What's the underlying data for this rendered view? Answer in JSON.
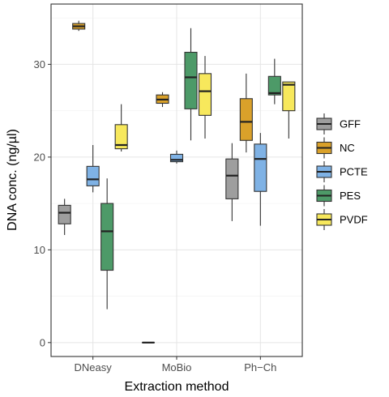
{
  "chart_data": {
    "type": "boxplot",
    "xlabel": "Extraction method",
    "ylabel": "DNA conc. (ng/µl)",
    "categories": [
      "DNeasy",
      "MoBio",
      "Ph−Ch"
    ],
    "yticks": [
      0,
      10,
      20,
      30
    ],
    "ylim": [
      -1.5,
      36.5
    ],
    "grid": true,
    "legend_position": "right",
    "series": [
      {
        "name": "GFF",
        "color": "#9e9e9e",
        "boxes": [
          {
            "category": "DNeasy",
            "min": 11.6,
            "q1": 12.8,
            "median": 14.0,
            "q3": 14.8,
            "max": 15.5
          },
          {
            "category": "MoBio",
            "min": 0.0,
            "q1": 0.0,
            "median": 0.0,
            "q3": 0.0,
            "max": 0.0
          },
          {
            "category": "Ph−Ch",
            "min": 13.1,
            "q1": 15.5,
            "median": 18.0,
            "q3": 19.8,
            "max": 21.5
          }
        ]
      },
      {
        "name": "NC",
        "color": "#daa12a",
        "boxes": [
          {
            "category": "DNeasy",
            "min": 33.6,
            "q1": 33.8,
            "median": 34.1,
            "q3": 34.4,
            "max": 34.7
          },
          {
            "category": "MoBio",
            "min": 25.4,
            "q1": 25.8,
            "median": 26.2,
            "q3": 26.7,
            "max": 27.0
          },
          {
            "category": "Ph−Ch",
            "min": 20.5,
            "q1": 21.8,
            "median": 23.8,
            "q3": 26.3,
            "max": 29.0
          }
        ]
      },
      {
        "name": "PCTE",
        "color": "#7fb2e5",
        "boxes": [
          {
            "category": "DNeasy",
            "min": 16.2,
            "q1": 16.9,
            "median": 17.6,
            "q3": 19.0,
            "max": 21.3
          },
          {
            "category": "MoBio",
            "min": 19.3,
            "q1": 19.5,
            "median": 19.7,
            "q3": 20.3,
            "max": 20.7
          },
          {
            "category": "Ph−Ch",
            "min": 12.6,
            "q1": 16.3,
            "median": 19.8,
            "q3": 21.4,
            "max": 22.6
          }
        ]
      },
      {
        "name": "PES",
        "color": "#4d9a68",
        "boxes": [
          {
            "category": "DNeasy",
            "min": 3.6,
            "q1": 7.8,
            "median": 12.0,
            "q3": 15.0,
            "max": 17.7
          },
          {
            "category": "MoBio",
            "min": 21.8,
            "q1": 25.2,
            "median": 28.6,
            "q3": 31.3,
            "max": 33.9
          },
          {
            "category": "Ph−Ch",
            "min": 25.7,
            "q1": 26.7,
            "median": 26.9,
            "q3": 28.7,
            "max": 30.6
          }
        ]
      },
      {
        "name": "PVDF",
        "color": "#f7e85c",
        "boxes": [
          {
            "category": "DNeasy",
            "min": 20.6,
            "q1": 20.9,
            "median": 21.3,
            "q3": 23.5,
            "max": 25.7
          },
          {
            "category": "MoBio",
            "min": 22.0,
            "q1": 24.5,
            "median": 27.1,
            "q3": 29.0,
            "max": 30.9
          },
          {
            "category": "Ph−Ch",
            "min": 22.0,
            "q1": 25.0,
            "median": 27.8,
            "q3": 28.1,
            "max": 28.1
          }
        ]
      }
    ]
  }
}
